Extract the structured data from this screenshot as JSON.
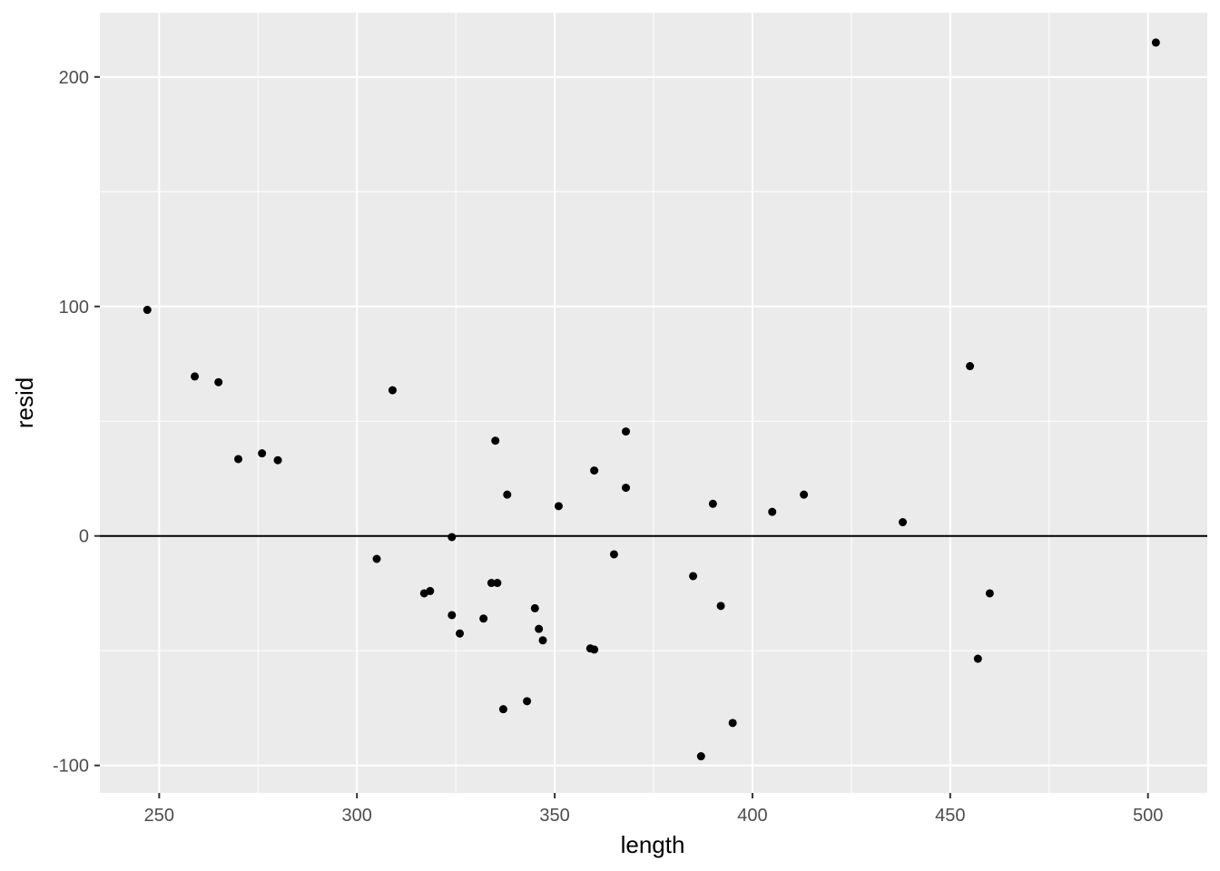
{
  "chart_data": {
    "type": "scatter",
    "title": "",
    "xlabel": "length",
    "ylabel": "resid",
    "xlim": [
      235,
      515
    ],
    "ylim": [
      -112,
      228
    ],
    "x_ticks": [
      250,
      300,
      350,
      400,
      450,
      500
    ],
    "x_tick_labels": [
      "250",
      "300",
      "350",
      "400",
      "450",
      "500"
    ],
    "x_minor_ticks": [
      275,
      325,
      375,
      425,
      475
    ],
    "y_ticks": [
      -100,
      0,
      100,
      200
    ],
    "y_tick_labels": [
      "-100",
      "0",
      "100",
      "200"
    ],
    "y_minor_ticks": [
      -50,
      50,
      150
    ],
    "hline": 0,
    "grid": true,
    "legend": "none",
    "colors": {
      "panel_background": "#ebebeb",
      "grid": "#ffffff",
      "points": "#000000",
      "reference_line": "#000000"
    },
    "points": [
      {
        "x": 247,
        "y": 98.5
      },
      {
        "x": 259,
        "y": 69.5
      },
      {
        "x": 265,
        "y": 67
      },
      {
        "x": 270,
        "y": 33.5
      },
      {
        "x": 276,
        "y": 36
      },
      {
        "x": 280,
        "y": 33
      },
      {
        "x": 305,
        "y": -10
      },
      {
        "x": 309,
        "y": 63.5
      },
      {
        "x": 317,
        "y": -25
      },
      {
        "x": 318.5,
        "y": -24
      },
      {
        "x": 324,
        "y": -34.5
      },
      {
        "x": 324,
        "y": -0.5
      },
      {
        "x": 326,
        "y": -42.5
      },
      {
        "x": 332,
        "y": -36
      },
      {
        "x": 334,
        "y": -20.5
      },
      {
        "x": 335,
        "y": 41.5
      },
      {
        "x": 335.5,
        "y": -20.5
      },
      {
        "x": 337,
        "y": -75.5
      },
      {
        "x": 338,
        "y": 18
      },
      {
        "x": 343,
        "y": -72
      },
      {
        "x": 345,
        "y": -31.5
      },
      {
        "x": 346,
        "y": -40.5
      },
      {
        "x": 347,
        "y": -45.5
      },
      {
        "x": 351,
        "y": 13
      },
      {
        "x": 359,
        "y": -49
      },
      {
        "x": 360,
        "y": -49.5
      },
      {
        "x": 360,
        "y": 28.5
      },
      {
        "x": 365,
        "y": -8
      },
      {
        "x": 368,
        "y": 45.5
      },
      {
        "x": 368,
        "y": 21
      },
      {
        "x": 385,
        "y": -17.5
      },
      {
        "x": 387,
        "y": -96
      },
      {
        "x": 390,
        "y": 14
      },
      {
        "x": 392,
        "y": -30.5
      },
      {
        "x": 395,
        "y": -81.5
      },
      {
        "x": 405,
        "y": 10.5
      },
      {
        "x": 413,
        "y": 18
      },
      {
        "x": 438,
        "y": 6
      },
      {
        "x": 455,
        "y": 74
      },
      {
        "x": 457,
        "y": -53.5
      },
      {
        "x": 460,
        "y": -25
      },
      {
        "x": 502,
        "y": 215
      }
    ]
  }
}
